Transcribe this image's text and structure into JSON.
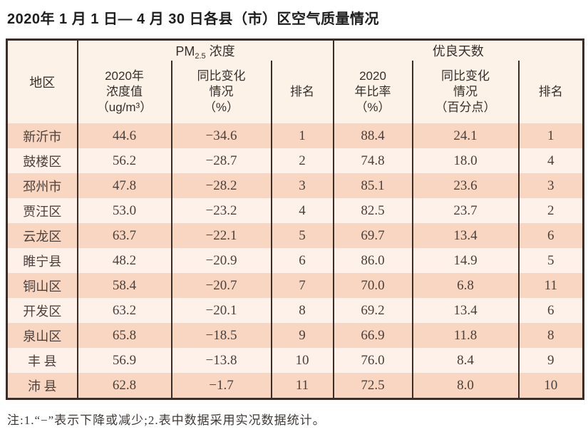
{
  "title": "2020年 1 月 1 日— 4 月 30 日各县（市）区空气质量情况",
  "footnote": "注:1.“−”表示下降或减少;2.表中数据采用实况数据统计。",
  "colors": {
    "border": "#3b2d28",
    "header_bg": "#fcf2e7",
    "row_dark": "#f9d6c1",
    "row_light": "#fdf1ea"
  },
  "table": {
    "corner_header": "地区",
    "group_pm": {
      "prefix": "PM",
      "sub": "2.5",
      "suffix": " 浓度"
    },
    "group_good": "优良天数",
    "sub_headers": [
      {
        "lines": [
          "2020年",
          "浓度值",
          "（ug/m³）"
        ]
      },
      {
        "lines": [
          "同比变化",
          "情况",
          "（%）"
        ]
      },
      {
        "lines": [
          "排名"
        ]
      },
      {
        "lines": [
          "2020",
          "年比率",
          "（%）"
        ]
      },
      {
        "lines": [
          "同比变化",
          "情况",
          "（百分点）"
        ]
      },
      {
        "lines": [
          "排名"
        ]
      }
    ],
    "cell_names": [
      "region-cell",
      "pm-value-cell",
      "pm-change-cell",
      "pm-rank-cell",
      "good-rate-cell",
      "good-change-cell",
      "good-rank-cell"
    ],
    "rows": [
      [
        "新沂市",
        "44.6",
        "−34.6",
        "1",
        "88.4",
        "24.1",
        "1"
      ],
      [
        "鼓楼区",
        "56.2",
        "−28.7",
        "2",
        "74.8",
        "18.0",
        "4"
      ],
      [
        "邳州市",
        "47.8",
        "−28.2",
        "3",
        "85.1",
        "23.6",
        "3"
      ],
      [
        "贾汪区",
        "53.0",
        "−23.2",
        "4",
        "82.5",
        "23.7",
        "2"
      ],
      [
        "云龙区",
        "63.7",
        "−22.1",
        "5",
        "69.7",
        "13.4",
        "6"
      ],
      [
        "睢宁县",
        "48.2",
        "−20.9",
        "6",
        "86.0",
        "14.9",
        "5"
      ],
      [
        "铜山区",
        "58.4",
        "−20.7",
        "7",
        "70.0",
        "6.8",
        "11"
      ],
      [
        "开发区",
        "63.2",
        "−20.1",
        "8",
        "69.2",
        "13.4",
        "6"
      ],
      [
        "泉山区",
        "65.8",
        "−18.5",
        "9",
        "66.9",
        "11.8",
        "8"
      ],
      [
        "丰 县",
        "56.9",
        "−13.8",
        "10",
        "76.0",
        "8.4",
        "9"
      ],
      [
        "沛 县",
        "62.8",
        "−1.7",
        "11",
        "72.5",
        "8.0",
        "10"
      ]
    ]
  },
  "chart_data": {
    "type": "table",
    "title": "2020年1月1日—4月30日各县（市）区空气质量情况",
    "columns": [
      "地区",
      "PM2.5浓度 2020年浓度值（ug/m³）",
      "PM2.5浓度 同比变化情况（%）",
      "PM2.5浓度 排名",
      "优良天数 2020年比率（%）",
      "优良天数 同比变化情况（百分点）",
      "优良天数 排名"
    ],
    "rows": [
      [
        "新沂市",
        44.6,
        -34.6,
        1,
        88.4,
        24.1,
        1
      ],
      [
        "鼓楼区",
        56.2,
        -28.7,
        2,
        74.8,
        18.0,
        4
      ],
      [
        "邳州市",
        47.8,
        -28.2,
        3,
        85.1,
        23.6,
        3
      ],
      [
        "贾汪区",
        53.0,
        -23.2,
        4,
        82.5,
        23.7,
        2
      ],
      [
        "云龙区",
        63.7,
        -22.1,
        5,
        69.7,
        13.4,
        6
      ],
      [
        "睢宁县",
        48.2,
        -20.9,
        6,
        86.0,
        14.9,
        5
      ],
      [
        "铜山区",
        58.4,
        -20.7,
        7,
        70.0,
        6.8,
        11
      ],
      [
        "开发区",
        63.2,
        -20.1,
        8,
        69.2,
        13.4,
        6
      ],
      [
        "泉山区",
        65.8,
        -18.5,
        9,
        66.9,
        11.8,
        8
      ],
      [
        "丰县",
        56.9,
        -13.8,
        10,
        76.0,
        8.4,
        9
      ],
      [
        "沛县",
        62.8,
        -1.7,
        11,
        72.5,
        8.0,
        10
      ]
    ]
  }
}
